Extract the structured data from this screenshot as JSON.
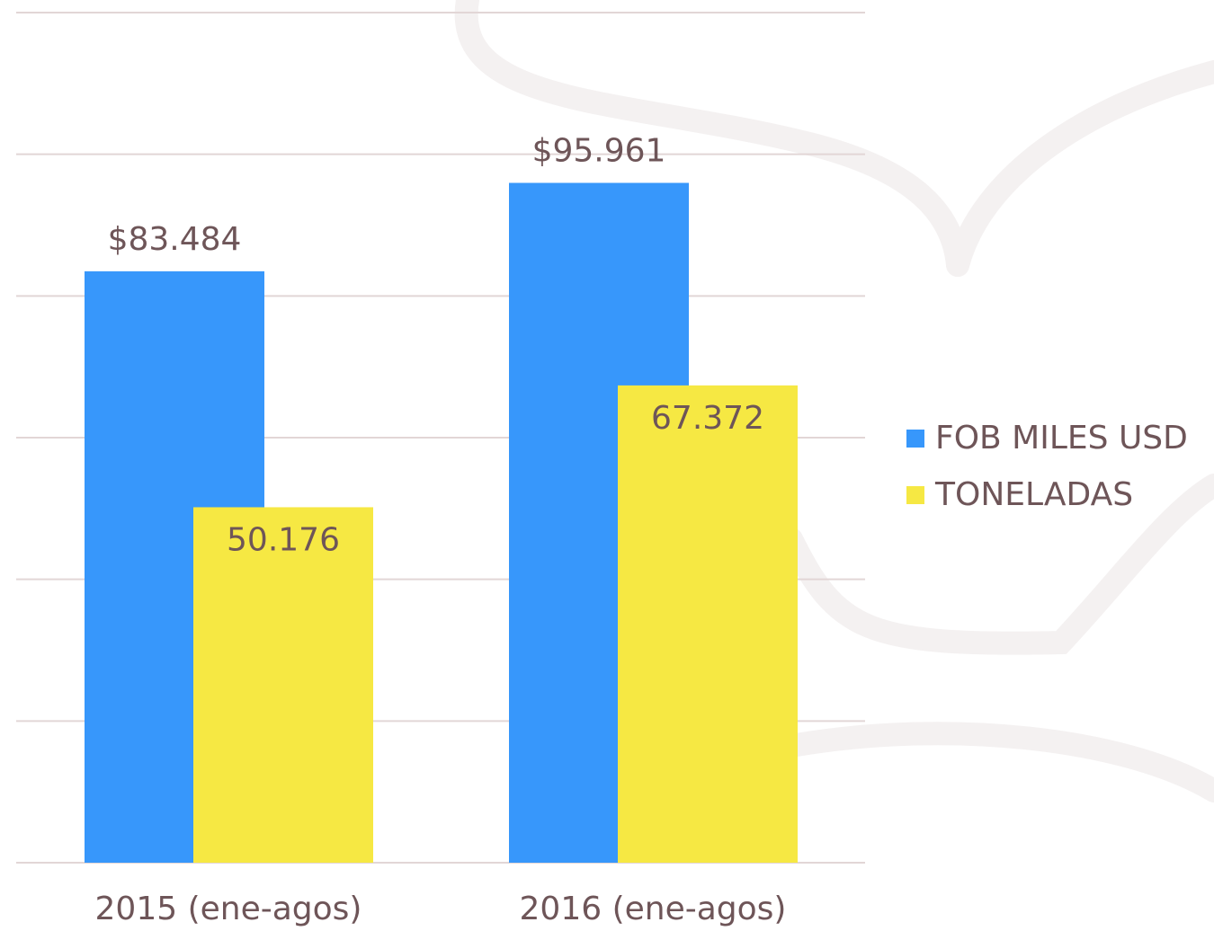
{
  "chart_data": {
    "type": "bar",
    "categories": [
      "2015 (ene-agos)",
      "2016 (ene-agos)"
    ],
    "series": [
      {
        "name": "FOB MILES USD",
        "color": "#3797fb",
        "values": [
          83484,
          95961
        ],
        "value_labels": [
          "$83.484",
          "$95.961"
        ]
      },
      {
        "name": "TONELADAS",
        "color": "#f6e843",
        "values": [
          50176,
          67372
        ],
        "value_labels": [
          "50.176",
          "67.372"
        ]
      }
    ],
    "ylim": [
      0,
      120000
    ],
    "yticks": [
      0,
      20000,
      40000,
      60000,
      80000,
      100000,
      120000
    ],
    "grid": true,
    "legend": "right"
  }
}
